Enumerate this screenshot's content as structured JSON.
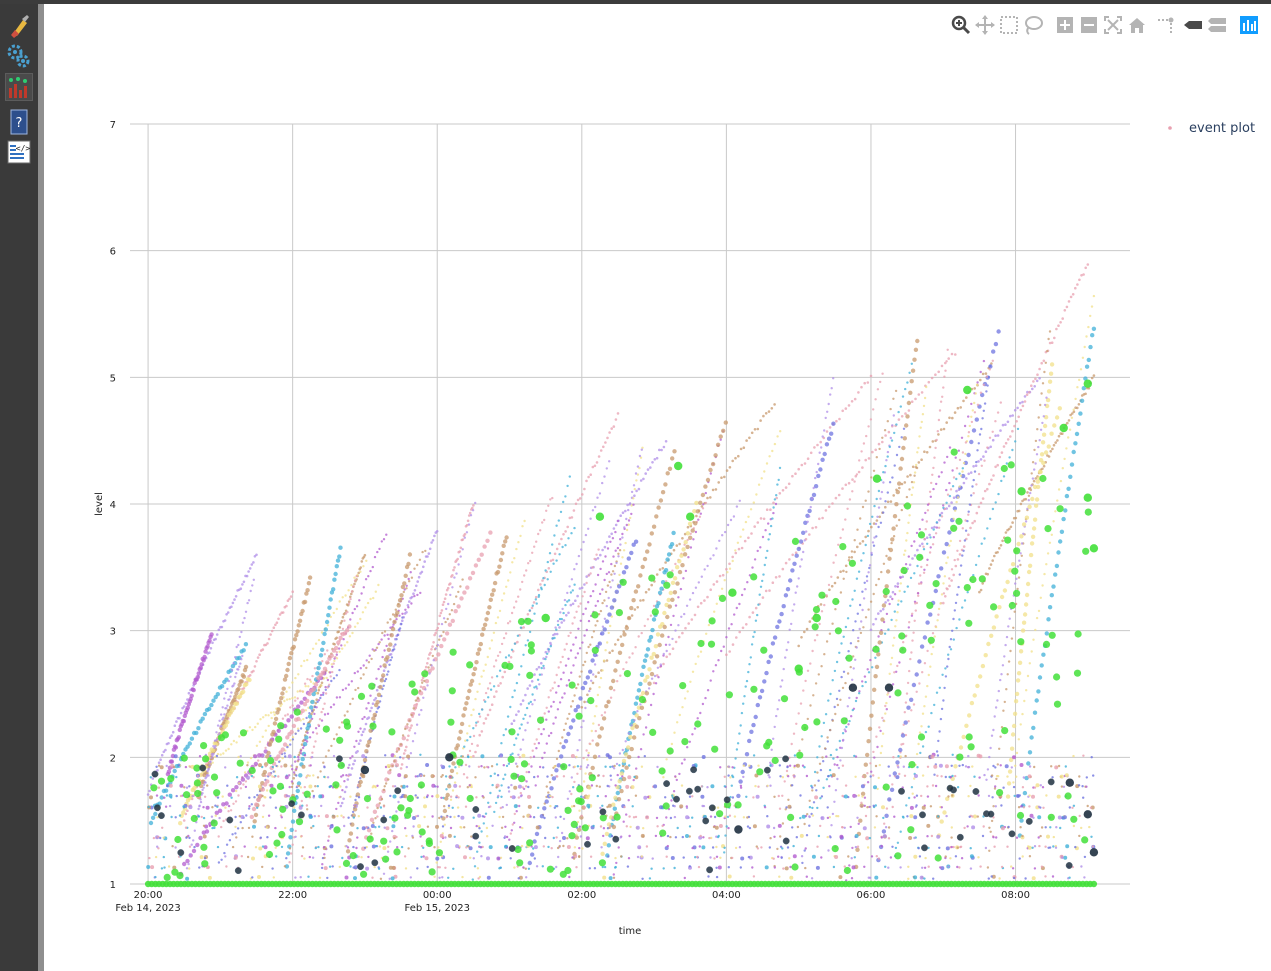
{
  "toolbar": {
    "tools": [
      {
        "name": "reset-tool",
        "icon": "broom-icon"
      },
      {
        "name": "settings-tool",
        "icon": "gears-icon"
      },
      {
        "name": "plot-tool",
        "icon": "scatter-plot-icon"
      },
      {
        "name": "help-tool",
        "icon": "help-book-icon"
      },
      {
        "name": "code-tool",
        "icon": "code-view-icon"
      }
    ]
  },
  "modebar": {
    "buttons": [
      "zoom-icon",
      "pan-icon",
      "box-select-icon",
      "lasso-select-icon",
      "zoom-in-icon",
      "zoom-out-icon",
      "autoscale-icon",
      "reset-axes-icon",
      "spike-lines-icon",
      "hover-closest-icon",
      "hover-compare-icon",
      "plotly-logo-icon"
    ]
  },
  "chart_data": {
    "type": "scatter",
    "title": "",
    "xlabel": "time",
    "ylabel": "level",
    "x_range": [
      "2023-02-14T19:45",
      "2023-02-15T09:35"
    ],
    "x_ticks": [
      {
        "t": "2023-02-14T20:00",
        "label": "20:00",
        "sublabel": "Feb 14, 2023"
      },
      {
        "t": "2023-02-14T22:00",
        "label": "22:00",
        "sublabel": ""
      },
      {
        "t": "2023-02-15T00:00",
        "label": "00:00",
        "sublabel": "Feb 15, 2023"
      },
      {
        "t": "2023-02-15T02:00",
        "label": "02:00",
        "sublabel": ""
      },
      {
        "t": "2023-02-15T04:00",
        "label": "04:00",
        "sublabel": ""
      },
      {
        "t": "2023-02-15T06:00",
        "label": "06:00",
        "sublabel": ""
      },
      {
        "t": "2023-02-15T08:00",
        "label": "08:00",
        "sublabel": ""
      }
    ],
    "ylim": [
      1,
      7
    ],
    "y_ticks": [
      "1",
      "2",
      "3",
      "4",
      "5",
      "6",
      "7"
    ],
    "grid": true,
    "legend": {
      "position": "top-right",
      "entries": [
        {
          "name": "event plot",
          "color": "#e8a0b0"
        }
      ]
    },
    "colors": {
      "pink": "#e8a0b0",
      "violet": "#b08fe8",
      "blue": "#6f74e0",
      "tan": "#c89a6e",
      "yellow": "#f2e08a",
      "purple": "#b35ccf",
      "cyan": "#40b0d8",
      "green": "#43e03a",
      "dark": "#1f3040"
    },
    "series": [
      {
        "name": "event plot",
        "color": "#e8a0b0",
        "marker_size": "mixed",
        "points_note": "",
        "rising_trails": [
          {
            "start": "2023-02-14T20:00",
            "end": "2023-02-14T21:30",
            "y0": 1.7,
            "y1": 3.6,
            "color": "#b08fe8"
          },
          {
            "start": "2023-02-14T20:30",
            "end": "2023-02-14T22:00",
            "y0": 1.5,
            "y1": 3.3,
            "color": "#e8a0b0"
          },
          {
            "start": "2023-02-14T22:00",
            "end": "2023-02-14T23:00",
            "y0": 1.8,
            "y1": 3.6,
            "color": "#c89a6e"
          },
          {
            "start": "2023-02-14T22:40",
            "end": "2023-02-15T00:00",
            "y0": 1.6,
            "y1": 3.8,
            "color": "#b08fe8"
          },
          {
            "start": "2023-02-14T23:30",
            "end": "2023-02-15T00:30",
            "y0": 1.9,
            "y1": 4.0,
            "color": "#e8a0b0"
          },
          {
            "start": "2023-02-15T00:30",
            "end": "2023-02-15T02:30",
            "y0": 2.0,
            "y1": 4.7,
            "color": "#e8a0b0"
          },
          {
            "start": "2023-02-15T01:00",
            "end": "2023-02-15T03:10",
            "y0": 2.2,
            "y1": 4.5,
            "color": "#b08fe8"
          },
          {
            "start": "2023-02-15T02:00",
            "end": "2023-02-15T04:40",
            "y0": 2.4,
            "y1": 4.8,
            "color": "#c89a6e"
          },
          {
            "start": "2023-02-15T03:00",
            "end": "2023-02-15T06:00",
            "y0": 2.6,
            "y1": 5.0,
            "color": "#e8a0b0"
          },
          {
            "start": "2023-02-15T04:00",
            "end": "2023-02-15T07:10",
            "y0": 2.8,
            "y1": 5.2,
            "color": "#e8a0b0"
          },
          {
            "start": "2023-02-15T05:00",
            "end": "2023-02-15T07:40",
            "y0": 2.9,
            "y1": 5.1,
            "color": "#c89a6e"
          },
          {
            "start": "2023-02-15T06:00",
            "end": "2023-02-15T08:20",
            "y0": 3.0,
            "y1": 5.0,
            "color": "#b08fe8"
          },
          {
            "start": "2023-02-15T07:00",
            "end": "2023-02-15T09:00",
            "y0": 3.2,
            "y1": 5.9,
            "color": "#e8a0b0"
          },
          {
            "start": "2023-02-15T07:30",
            "end": "2023-02-15T09:05",
            "y0": 3.3,
            "y1": 5.0,
            "color": "#c89a6e"
          }
        ]
      }
    ],
    "highlight_points": [
      {
        "t": "2023-02-15T03:20",
        "y": 4.3,
        "color": "#43e03a"
      },
      {
        "t": "2023-02-15T03:30",
        "y": 3.9,
        "color": "#43e03a"
      },
      {
        "t": "2023-02-15T04:05",
        "y": 3.3,
        "color": "#43e03a"
      },
      {
        "t": "2023-02-15T05:00",
        "y": 2.7,
        "color": "#43e03a"
      },
      {
        "t": "2023-02-15T06:05",
        "y": 4.2,
        "color": "#43e03a"
      },
      {
        "t": "2023-02-15T07:20",
        "y": 4.9,
        "color": "#43e03a"
      },
      {
        "t": "2023-02-15T08:05",
        "y": 4.1,
        "color": "#43e03a"
      },
      {
        "t": "2023-02-15T08:40",
        "y": 4.6,
        "color": "#43e03a"
      },
      {
        "t": "2023-02-15T09:00",
        "y": 4.95,
        "color": "#43e03a"
      },
      {
        "t": "2023-02-15T09:00",
        "y": 4.05,
        "color": "#43e03a"
      },
      {
        "t": "2023-02-15T09:05",
        "y": 3.65,
        "color": "#43e03a"
      },
      {
        "t": "2023-02-15T01:30",
        "y": 3.1,
        "color": "#43e03a"
      },
      {
        "t": "2023-02-15T02:15",
        "y": 3.9,
        "color": "#43e03a"
      },
      {
        "t": "2023-02-15T05:15",
        "y": 3.1,
        "color": "#43e03a"
      },
      {
        "t": "2023-02-15T04:10",
        "y": 1.43,
        "color": "#1f3040"
      },
      {
        "t": "2023-02-15T05:45",
        "y": 2.55,
        "color": "#1f3040"
      },
      {
        "t": "2023-02-15T06:15",
        "y": 2.55,
        "color": "#1f3040"
      },
      {
        "t": "2023-02-15T08:45",
        "y": 1.8,
        "color": "#1f3040"
      },
      {
        "t": "2023-02-15T09:00",
        "y": 1.55,
        "color": "#1f3040"
      },
      {
        "t": "2023-02-15T09:05",
        "y": 1.25,
        "color": "#1f3040"
      },
      {
        "t": "2023-02-14T23:00",
        "y": 1.9,
        "color": "#1f3040"
      },
      {
        "t": "2023-02-15T00:10",
        "y": 2.0,
        "color": "#1f3040"
      }
    ]
  }
}
